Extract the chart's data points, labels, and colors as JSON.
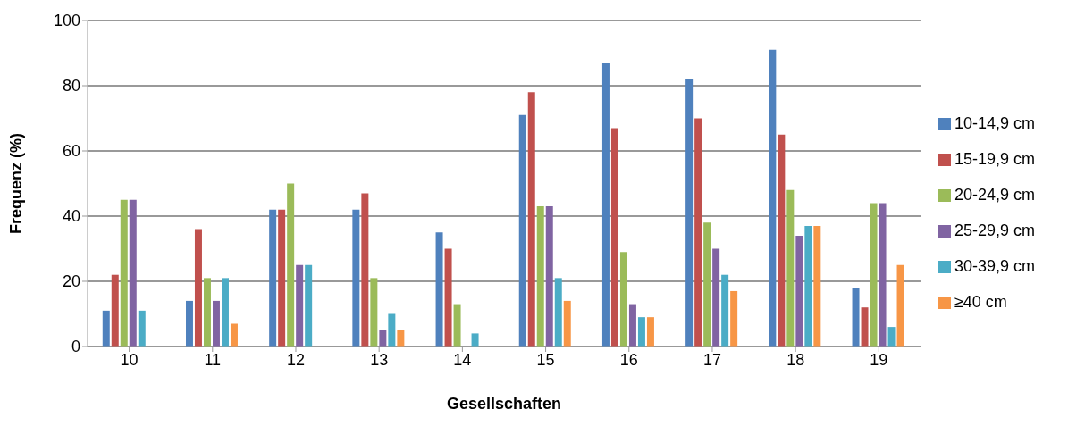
{
  "chart_data": {
    "type": "bar",
    "xlabel": "Gesellschaften",
    "ylabel": "Frequenz (%)",
    "categories": [
      "10",
      "11",
      "12",
      "13",
      "14",
      "15",
      "16",
      "17",
      "18",
      "19"
    ],
    "series": [
      {
        "name": "10-14,9 cm",
        "color": "#4f81bd",
        "values": [
          11,
          14,
          42,
          42,
          35,
          71,
          87,
          82,
          91,
          18
        ]
      },
      {
        "name": "15-19,9 cm",
        "color": "#c0504d",
        "values": [
          22,
          36,
          42,
          47,
          30,
          78,
          67,
          70,
          65,
          12
        ]
      },
      {
        "name": "20-24,9 cm",
        "color": "#9bbb59",
        "values": [
          45,
          21,
          50,
          21,
          13,
          43,
          29,
          38,
          48,
          44
        ]
      },
      {
        "name": "25-29,9 cm",
        "color": "#8064a2",
        "values": [
          45,
          14,
          25,
          5,
          0,
          43,
          13,
          30,
          34,
          44
        ]
      },
      {
        "name": "30-39,9 cm",
        "color": "#4bacc6",
        "values": [
          11,
          21,
          25,
          10,
          4,
          21,
          9,
          22,
          37,
          6
        ]
      },
      {
        "name": "≥40 cm",
        "color": "#f79646",
        "values": [
          0,
          7,
          0,
          5,
          0,
          14,
          9,
          17,
          37,
          25
        ]
      }
    ],
    "ylim": [
      0,
      100
    ],
    "yticks": [
      0,
      20,
      40,
      60,
      80,
      100
    ],
    "grid": "y",
    "legend": "right"
  }
}
